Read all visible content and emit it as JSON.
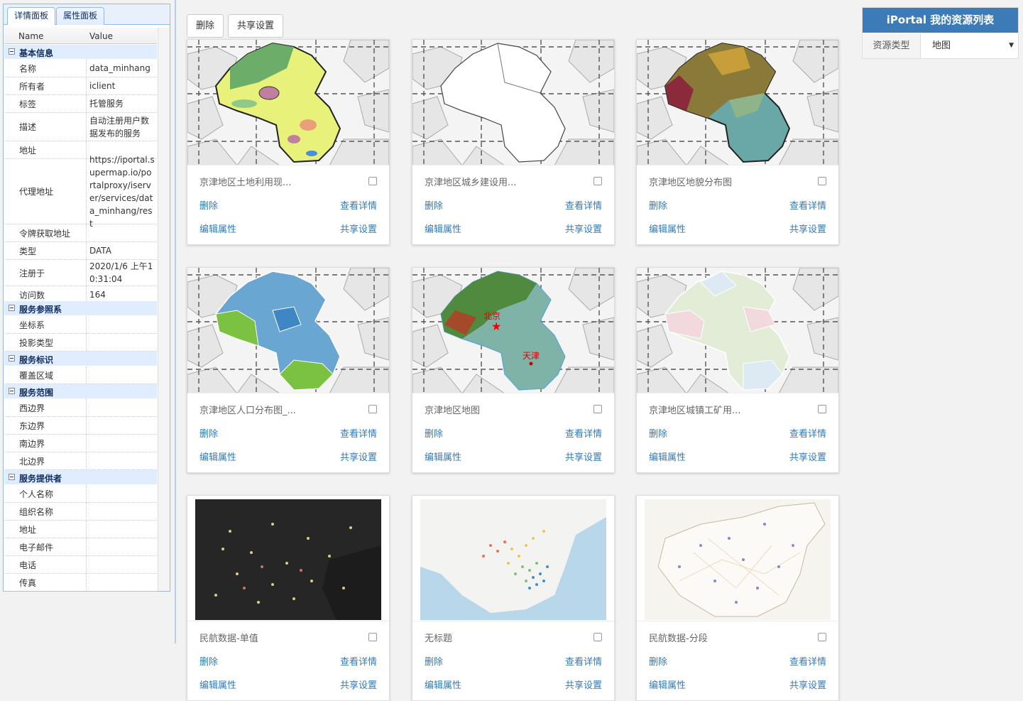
{
  "left_panel": {
    "tabs": [
      "详情面板",
      "属性面板"
    ],
    "col_name": "Name",
    "col_value": "Value",
    "groups": {
      "basic": "基本信息",
      "ref": "服务参照系",
      "ident": "服务标识",
      "range": "服务范围",
      "provider": "服务提供者"
    },
    "rows": {
      "name": [
        "名称",
        "data_minhang"
      ],
      "owner": [
        "所有者",
        "iclient"
      ],
      "tag": [
        "标签",
        "托管服务"
      ],
      "desc": [
        "描述",
        "自动注册用户数据发布的服务"
      ],
      "addr": [
        "地址",
        ""
      ],
      "proxy": [
        "代理地址",
        "https://iportal.supermap.io/portalproxy/iserver/services/data_minhang/rest"
      ],
      "token": [
        "令牌获取地址",
        ""
      ],
      "type": [
        "类型",
        "DATA"
      ],
      "reg": [
        "注册于",
        "2020/1/6 上午10:31:04"
      ],
      "visits": [
        "访问数",
        "164"
      ],
      "crs": [
        "坐标系",
        ""
      ],
      "proj": [
        "投影类型",
        ""
      ],
      "cover": [
        "覆盖区域",
        ""
      ],
      "west": [
        "西边界",
        ""
      ],
      "east": [
        "东边界",
        ""
      ],
      "south": [
        "南边界",
        ""
      ],
      "north": [
        "北边界",
        ""
      ],
      "person": [
        "个人名称",
        ""
      ],
      "org": [
        "组织名称",
        ""
      ],
      "paddr": [
        "地址",
        ""
      ],
      "email": [
        "电子邮件",
        ""
      ],
      "phone": [
        "电话",
        ""
      ],
      "fax": [
        "传真",
        ""
      ]
    }
  },
  "toolbar": {
    "delete_label": "删除",
    "share_label": "共享设置"
  },
  "card_actions": {
    "delete": "删除",
    "view": "查看详情",
    "edit": "编辑属性",
    "share": "共享设置"
  },
  "cards": [
    {
      "title": "京津地区土地利用现..."
    },
    {
      "title": "京津地区城乡建设用..."
    },
    {
      "title": "京津地区地貌分布图"
    },
    {
      "title": "京津地区人口分布图_..."
    },
    {
      "title": "京津地区地图"
    },
    {
      "title": "京津地区城镇工矿用..."
    },
    {
      "title": "民航数据-单值"
    },
    {
      "title": "无标题"
    },
    {
      "title": "民航数据-分段"
    }
  ],
  "map_labels": {
    "beijing": "北京",
    "tianjin": "天津"
  },
  "right_panel": {
    "title": "iPortal 我的资源列表",
    "filter_label": "资源类型",
    "filter_value": "地图"
  }
}
